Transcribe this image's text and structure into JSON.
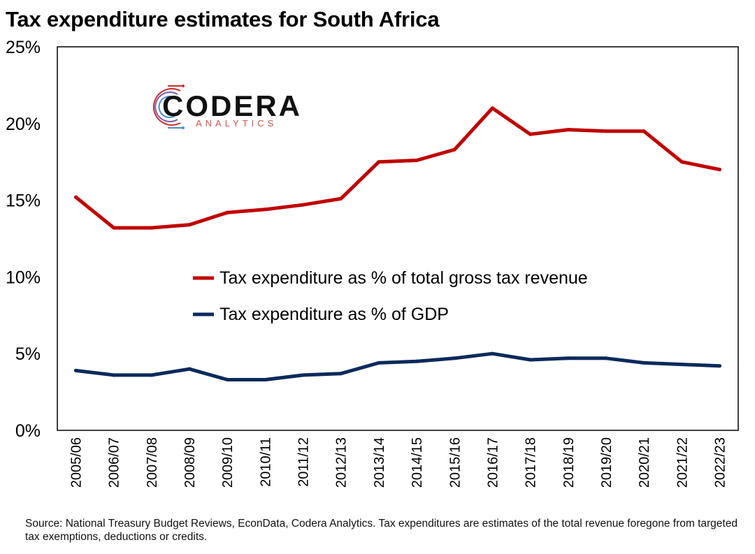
{
  "chart_data": {
    "type": "line",
    "title": "Tax expenditure estimates for South Africa",
    "categories": [
      "2005/06",
      "2006/07",
      "2007/08",
      "2008/09",
      "2009/10",
      "2010/11",
      "2011/12",
      "2012/13",
      "2013/14",
      "2014/15",
      "2015/16",
      "2016/17",
      "2017/18",
      "2018/19",
      "2019/20",
      "2020/21",
      "2021/22",
      "2022/23"
    ],
    "series": [
      {
        "name": "Tax expenditure as % of total gross tax revenue",
        "color": "#c00000",
        "values": [
          15.2,
          13.2,
          13.2,
          13.4,
          14.2,
          14.4,
          14.7,
          15.1,
          17.5,
          17.6,
          18.3,
          21.0,
          19.3,
          19.6,
          19.5,
          19.5,
          17.5,
          17.0
        ]
      },
      {
        "name": "Tax expenditure as % of GDP",
        "color": "#0b2a5c",
        "values": [
          3.9,
          3.6,
          3.6,
          4.0,
          3.3,
          3.3,
          3.6,
          3.7,
          4.4,
          4.5,
          4.7,
          5.0,
          4.6,
          4.7,
          4.7,
          4.4,
          4.3,
          4.2
        ]
      }
    ],
    "yticks": [
      "0%",
      "5%",
      "10%",
      "15%",
      "20%",
      "25%"
    ],
    "ylim": [
      0,
      25
    ],
    "legend": "center",
    "grid": false
  },
  "logo": {
    "main": "CODERA",
    "sub": "ANALYTICS"
  },
  "source_note": "Source: National Treasury Budget Reviews, EconData, Codera Analytics. Tax expenditures are estimates of the total revenue foregone from targeted tax exemptions, deductions or credits."
}
